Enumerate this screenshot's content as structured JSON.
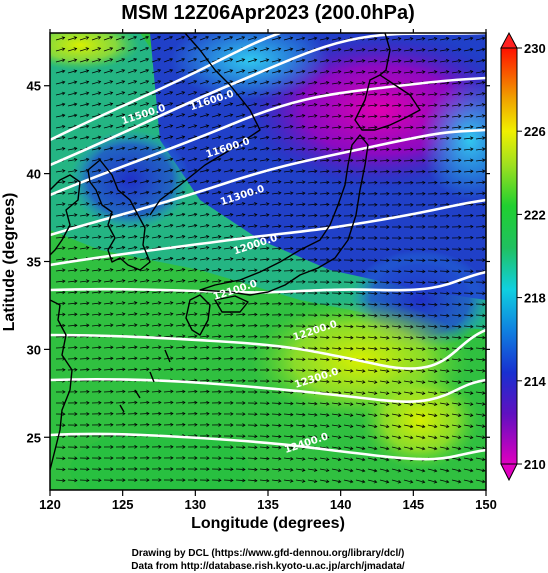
{
  "title": "MSM 12Z06Apr2023 (200.0hPa)",
  "x_axis": {
    "label": "Longitude (degrees)",
    "range": [
      120,
      150
    ],
    "ticks": [
      "120",
      "125",
      "130",
      "135",
      "140",
      "145",
      "150"
    ]
  },
  "y_axis": {
    "label": "Latitude  (degrees)",
    "range": [
      22,
      48
    ],
    "ticks": [
      "25",
      "30",
      "35",
      "40",
      "45"
    ]
  },
  "colorbar": {
    "ticks": [
      "210",
      "214",
      "218",
      "222",
      "226",
      "230"
    ],
    "range": [
      210,
      230
    ],
    "colors": [
      "#cc00cc",
      "#2020c0",
      "#20e0f0",
      "#20d040",
      "#e0f000",
      "#ff2000"
    ]
  },
  "contour_labels": [
    {
      "text": "11500.0",
      "lon": 126.5,
      "lat": 43.2
    },
    {
      "text": "11600.0",
      "lon": 131.2,
      "lat": 44.0
    },
    {
      "text": "11600.0",
      "lon": 132.3,
      "lat": 41.3
    },
    {
      "text": "11300.0",
      "lon": 133.3,
      "lat": 38.6
    },
    {
      "text": "12000.0",
      "lon": 134.2,
      "lat": 35.8
    },
    {
      "text": "12100.0",
      "lon": 132.8,
      "lat": 33.2
    },
    {
      "text": "12200.0",
      "lon": 138.3,
      "lat": 30.9
    },
    {
      "text": "12300.0",
      "lon": 138.4,
      "lat": 28.2
    },
    {
      "text": "12400.0",
      "lon": 137.7,
      "lat": 24.5
    }
  ],
  "footer": {
    "line1": "Drawing by DCL (https://www.gfd-dennou.org/library/dcl/)",
    "line2": "Data from http://database.rish.kyoto-u.ac.jp/arch/jmadata/"
  }
}
